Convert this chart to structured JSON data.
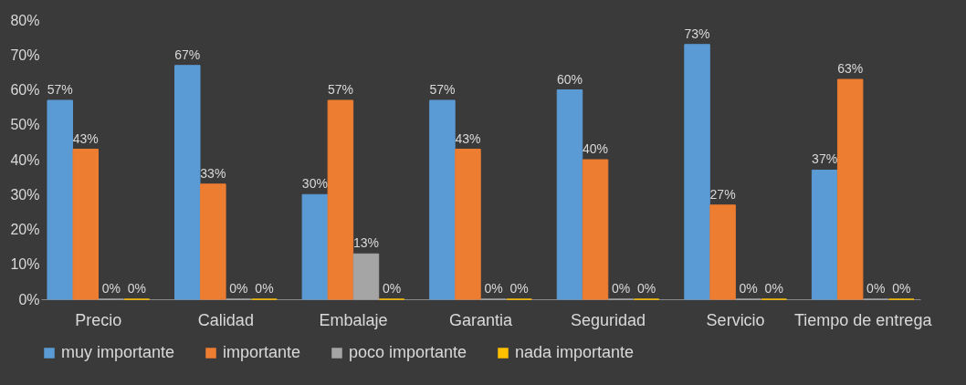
{
  "chart_data": {
    "type": "bar",
    "categories": [
      "Precio",
      "Calidad",
      "Embalaje",
      "Garantia",
      "Seguridad",
      "Servicio",
      "Tiempo de entrega"
    ],
    "series": [
      {
        "name": "muy importante",
        "color": "#5b9bd5",
        "values": [
          57,
          67,
          30,
          57,
          60,
          73,
          37
        ],
        "value_labels": [
          "57%",
          "67%",
          "30%",
          "57%",
          "60%",
          "73%",
          "37%"
        ]
      },
      {
        "name": "importante",
        "color": "#ed7d31",
        "values": [
          43,
          33,
          57,
          43,
          40,
          27,
          63
        ],
        "value_labels": [
          "43%",
          "33%",
          "57%",
          "43%",
          "40%",
          "27%",
          "63%"
        ]
      },
      {
        "name": "poco importante",
        "color": "#a5a5a5",
        "values": [
          0,
          0,
          13,
          0,
          0,
          0,
          0
        ],
        "value_labels": [
          "0%",
          "0%",
          "13%",
          "0%",
          "0%",
          "0%",
          "0%"
        ]
      },
      {
        "name": "nada importante",
        "color": "#ffc000",
        "values": [
          0,
          0,
          0,
          0,
          0,
          0,
          0
        ],
        "value_labels": [
          "0%",
          "0%",
          "0%",
          "0%",
          "0%",
          "0%",
          "0%"
        ]
      }
    ],
    "ylim": [
      0,
      80
    ],
    "yticks": [
      {
        "value": 0,
        "label": "0%"
      },
      {
        "value": 10,
        "label": "10%"
      },
      {
        "value": 20,
        "label": "20%"
      },
      {
        "value": 30,
        "label": "30%"
      },
      {
        "value": 40,
        "label": "40%"
      },
      {
        "value": 50,
        "label": "50%"
      },
      {
        "value": 60,
        "label": "60%"
      },
      {
        "value": 70,
        "label": "70%"
      },
      {
        "value": 80,
        "label": "80%"
      }
    ],
    "grid": false,
    "legend": "bottom"
  }
}
